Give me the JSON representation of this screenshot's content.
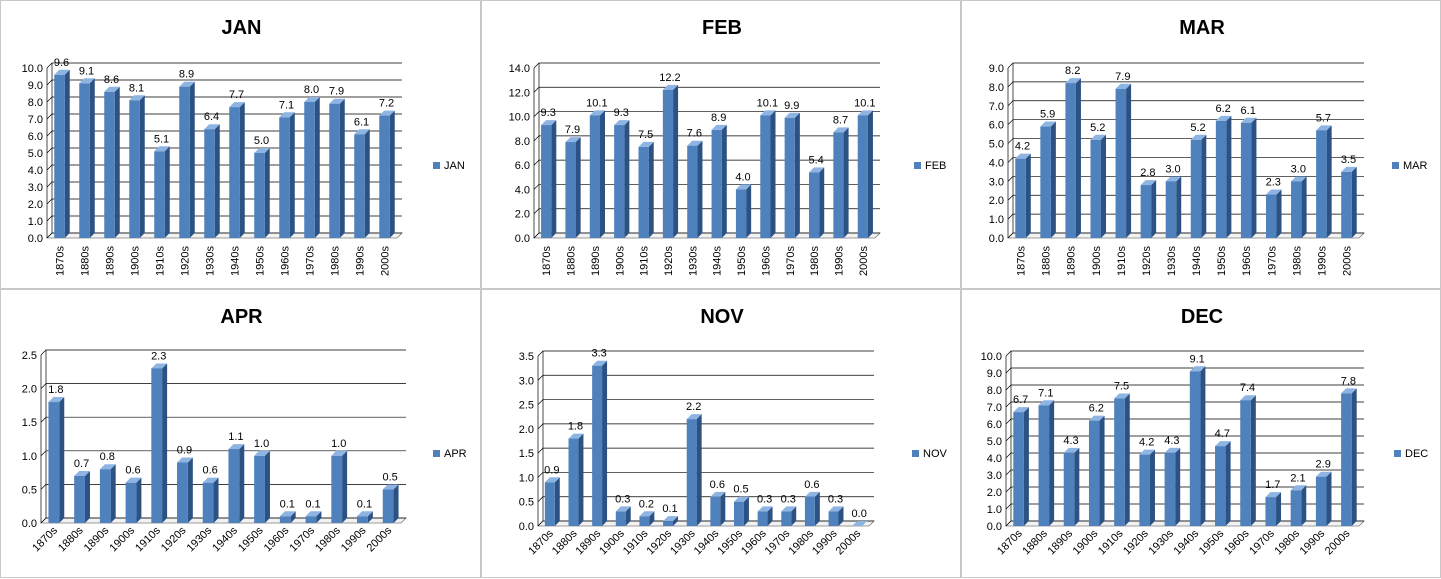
{
  "colors": {
    "bar_front": "#4f81bd",
    "bar_side": "#2c5183",
    "bar_top": "#8eb4e3",
    "grid": "#000000",
    "wall": "#ffffff"
  },
  "chart_data": [
    {
      "type": "bar",
      "title": "JAN",
      "categories": [
        "1870s",
        "1880s",
        "1890s",
        "1900s",
        "1910s",
        "1920s",
        "1930s",
        "1940s",
        "1950s",
        "1960s",
        "1970s",
        "1980s",
        "1990s",
        "2000s"
      ],
      "series": [
        {
          "name": "JAN",
          "values": [
            9.6,
            9.1,
            8.6,
            8.1,
            5.1,
            8.9,
            6.4,
            7.7,
            5.0,
            7.1,
            8.0,
            7.9,
            6.1,
            7.2
          ]
        }
      ],
      "data_labels": [
        "9.6",
        "9.1",
        "8.6",
        "8.1",
        "5.1",
        "8.9",
        "6.4",
        "7.7",
        "5.0",
        "7.1",
        "8.0",
        "7.9",
        "6.1",
        "7.2"
      ],
      "ylim": [
        0,
        10
      ],
      "yticks": [
        "0.0",
        "1.0",
        "2.0",
        "3.0",
        "4.0",
        "5.0",
        "6.0",
        "7.0",
        "8.0",
        "9.0",
        "10.0"
      ],
      "grid": true,
      "legend": "right"
    },
    {
      "type": "bar",
      "title": "FEB",
      "categories": [
        "1870s",
        "1880s",
        "1890s",
        "1900s",
        "1910s",
        "1920s",
        "1930s",
        "1940s",
        "1950s",
        "1960s",
        "1970s",
        "1980s",
        "1990s",
        "2000s"
      ],
      "series": [
        {
          "name": "FEB",
          "values": [
            9.3,
            7.9,
            10.1,
            9.3,
            7.5,
            12.2,
            7.6,
            8.9,
            4.0,
            10.1,
            9.9,
            5.4,
            8.7,
            10.1
          ]
        }
      ],
      "data_labels": [
        "9.3",
        "7.9",
        "10.1",
        "9.3",
        "7.5",
        "12.2",
        "7.6",
        "8.9",
        "4.0",
        "10.1",
        "9.9",
        "5.4",
        "8.7",
        "10.1"
      ],
      "ylim": [
        0,
        14
      ],
      "yticks": [
        "0.0",
        "2.0",
        "4.0",
        "6.0",
        "8.0",
        "10.0",
        "12.0",
        "14.0"
      ],
      "grid": true,
      "legend": "right"
    },
    {
      "type": "bar",
      "title": "MAR",
      "categories": [
        "1870s",
        "1880s",
        "1890s",
        "1900s",
        "1910s",
        "1920s",
        "1930s",
        "1940s",
        "1950s",
        "1960s",
        "1970s",
        "1980s",
        "1990s",
        "2000s"
      ],
      "series": [
        {
          "name": "MAR",
          "values": [
            4.2,
            5.9,
            8.2,
            5.2,
            7.9,
            2.8,
            3.0,
            5.2,
            6.2,
            6.1,
            2.3,
            3.0,
            5.7,
            3.5
          ]
        }
      ],
      "data_labels": [
        "4.2",
        "5.9",
        "8.2",
        "5.2",
        "7.9",
        "2.8",
        "3.0",
        "5.2",
        "6.2",
        "6.1",
        "2.3",
        "3.0",
        "5.7",
        "3.5"
      ],
      "ylim": [
        0,
        9
      ],
      "yticks": [
        "0.0",
        "1.0",
        "2.0",
        "3.0",
        "4.0",
        "5.0",
        "6.0",
        "7.0",
        "8.0",
        "9.0"
      ],
      "grid": true,
      "legend": "right"
    },
    {
      "type": "bar",
      "title": "APR",
      "categories": [
        "1870s",
        "1880s",
        "1890s",
        "1900s",
        "1910s",
        "1920s",
        "1930s",
        "1940s",
        "1950s",
        "1960s",
        "1970s",
        "1980s",
        "1990s",
        "2000s"
      ],
      "series": [
        {
          "name": "APR",
          "values": [
            1.8,
            0.7,
            0.8,
            0.6,
            2.3,
            0.9,
            0.6,
            1.1,
            1.0,
            0.1,
            0.1,
            1.0,
            0.1,
            0.5
          ]
        }
      ],
      "data_labels": [
        "1.8",
        "0.7",
        "0.8",
        "0.6",
        "2.3",
        "0.9",
        "0.6",
        "1.1",
        "1.0",
        "0.1",
        "0.1",
        "1.0",
        "0.1",
        "0.5"
      ],
      "ylim": [
        0,
        2.5
      ],
      "yticks": [
        "0.0",
        "0.5",
        "1.0",
        "1.5",
        "2.0",
        "2.5"
      ],
      "grid": true,
      "legend": "right"
    },
    {
      "type": "bar",
      "title": "NOV",
      "categories": [
        "1870s",
        "1880s",
        "1890s",
        "1900s",
        "1910s",
        "1920s",
        "1930s",
        "1940s",
        "1950s",
        "1960s",
        "1970s",
        "1980s",
        "1990s",
        "2000s"
      ],
      "series": [
        {
          "name": "NOV",
          "values": [
            0.9,
            1.8,
            3.3,
            0.3,
            0.2,
            0.1,
            2.2,
            0.6,
            0.5,
            0.3,
            0.3,
            0.6,
            0.3,
            0.0
          ]
        }
      ],
      "data_labels": [
        "0.9",
        "1.8",
        "3.3",
        "0.3",
        "0.2",
        "0.1",
        "2.2",
        "0.6",
        "0.5",
        "0.3",
        "0.3",
        "0.6",
        "0.3",
        "0.0"
      ],
      "ylim": [
        0,
        3.5
      ],
      "yticks": [
        "0.0",
        "0.5",
        "1.0",
        "1.5",
        "2.0",
        "2.5",
        "3.0",
        "3.5"
      ],
      "grid": true,
      "legend": "right"
    },
    {
      "type": "bar",
      "title": "DEC",
      "categories": [
        "1870s",
        "1880s",
        "1890s",
        "1900s",
        "1910s",
        "1920s",
        "1930s",
        "1940s",
        "1950s",
        "1960s",
        "1970s",
        "1980s",
        "1990s",
        "2000s"
      ],
      "series": [
        {
          "name": "DEC",
          "values": [
            6.7,
            7.1,
            4.3,
            6.2,
            7.5,
            4.2,
            4.3,
            9.1,
            4.7,
            7.4,
            1.7,
            2.1,
            2.9,
            7.8
          ]
        }
      ],
      "data_labels": [
        "6.7",
        "7.1",
        "4.3",
        "6.2",
        "7.5",
        "4.2",
        "4.3",
        "9.1",
        "4.7",
        "7.4",
        "1.7",
        "2.1",
        "2.9",
        "7.8"
      ],
      "ylim": [
        0,
        10
      ],
      "yticks": [
        "0.0",
        "1.0",
        "2.0",
        "3.0",
        "4.0",
        "5.0",
        "6.0",
        "7.0",
        "8.0",
        "9.0",
        "10.0"
      ],
      "grid": true,
      "legend": "right"
    }
  ]
}
